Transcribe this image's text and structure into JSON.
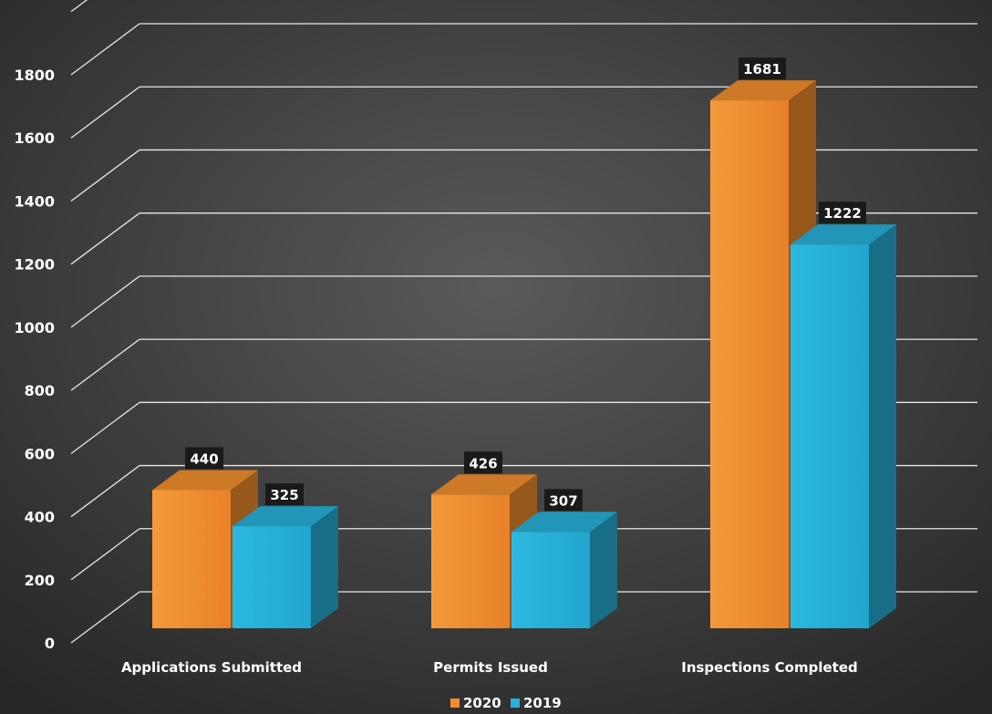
{
  "chart_data": {
    "type": "bar",
    "categories": [
      "Applications Submitted",
      "Permits Issued",
      "Inspections Completed"
    ],
    "series": [
      {
        "name": "2020",
        "values": [
          440,
          426,
          1681
        ],
        "color": "#F28E2B"
      },
      {
        "name": "2019",
        "values": [
          325,
          307,
          1222
        ],
        "color": "#27B1D9"
      }
    ],
    "ylim": [
      0,
      1800
    ],
    "yticks": [
      0,
      200,
      400,
      600,
      800,
      1000,
      1200,
      1400,
      1600,
      1800
    ],
    "grid": true,
    "legend_position": "bottom",
    "style": "3d-clustered-column",
    "background_color": "#3a3a3a"
  }
}
